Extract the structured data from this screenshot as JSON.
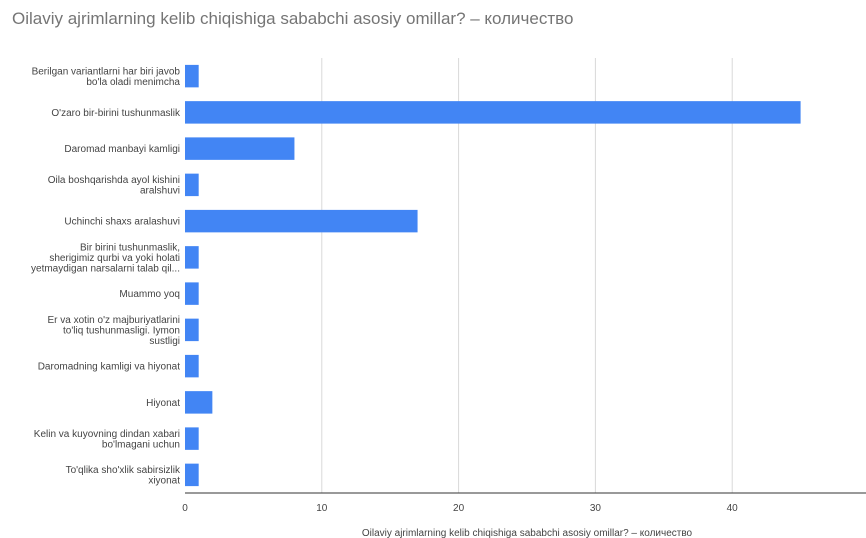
{
  "chart_data": {
    "type": "bar",
    "orientation": "horizontal",
    "title": "Oilaviy ajrimlarning kelib chiqishiga sababchi asosiy omillar?  – количество",
    "xlabel": "Oilaviy ajrimlarning kelib chiqishiga sababchi asosiy omillar?  – количество",
    "ylabel": "",
    "categories": [
      [
        "Berilgan variantlarni har biri javob",
        "bo'la oladi menimcha"
      ],
      [
        "O'zaro bir-birini tushunmaslik"
      ],
      [
        "Daromad manbayi kamligi"
      ],
      [
        "Oila boshqarishda ayol kishini",
        "aralshuvi"
      ],
      [
        "Uchinchi shaxs aralashuvi"
      ],
      [
        "Bir birini tushunmaslik,",
        "sherigimiz qurbi va yoki holati",
        "yetmaydigan narsalarni talab qil..."
      ],
      [
        "Muammo yoq"
      ],
      [
        "Er va xotin o'z majburiyatlarini",
        "to'liq tushunmasligi. Iymon",
        "sustligi"
      ],
      [
        "Daromadning kamligi va hiyonat"
      ],
      [
        "Hiyonat"
      ],
      [
        "Kelin va kuyovning dindan xabari",
        "bo'lmagani uchun"
      ],
      [
        "To'qlika sho'xlik sabirsizlik",
        "xiyonat"
      ]
    ],
    "values": [
      1,
      45,
      8,
      1,
      17,
      1,
      1,
      1,
      1,
      2,
      1,
      1
    ],
    "xlim": [
      0,
      50
    ],
    "xticks": [
      "0",
      "10",
      "20",
      "30",
      "40",
      "5"
    ],
    "grid": true,
    "legend": "none",
    "bar_color": "#4285f4",
    "grid_color": "#d9d9d9",
    "axis_color": "#333333"
  }
}
